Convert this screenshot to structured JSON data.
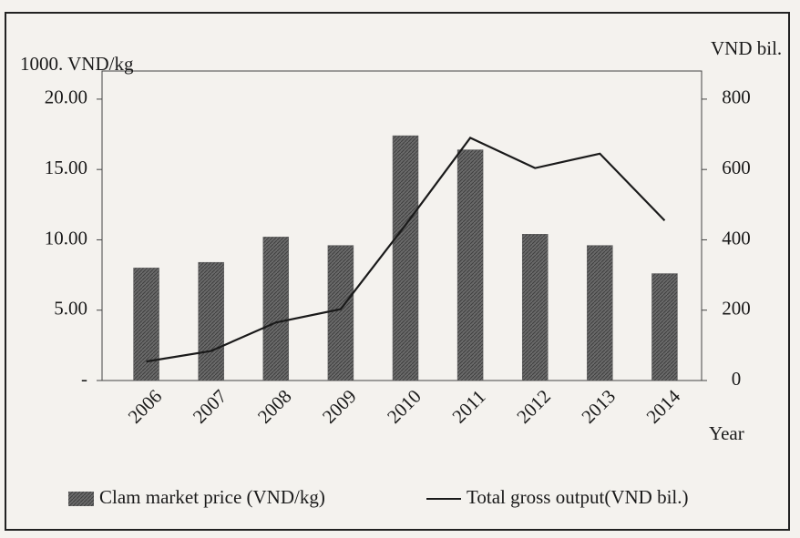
{
  "chart_data": {
    "type": "bar-line",
    "y_label": "1000. VND/kg",
    "y2_label": "VND bil.",
    "x_label": "Year",
    "categories": [
      "2006",
      "2007",
      "2008",
      "2009",
      "2010",
      "2011",
      "2012",
      "2013",
      "2014"
    ],
    "series": [
      {
        "name": "Clam market price (VND/kg)",
        "type": "bar",
        "color": "#5c5c5c",
        "values": [
          8.0,
          8.4,
          10.2,
          9.6,
          17.4,
          16.4,
          10.4,
          9.6,
          7.6
        ]
      },
      {
        "name": "Total gross output(VND bil.)",
        "type": "line",
        "axis": "y2",
        "color": "#1a1a1a",
        "values": [
          54,
          84,
          165,
          203,
          442,
          690,
          604,
          645,
          455
        ]
      }
    ],
    "ylim": [
      0,
      22
    ],
    "yticks": [
      {
        "value": 0,
        "label": "-"
      },
      {
        "value": 5,
        "label": "5.00"
      },
      {
        "value": 10,
        "label": "10.00"
      },
      {
        "value": 15,
        "label": "15.00"
      },
      {
        "value": 20,
        "label": "20.00"
      }
    ],
    "y2lim": [
      0,
      880
    ],
    "y2ticks": [
      0,
      200,
      400,
      600,
      800
    ],
    "legend": "bottom"
  }
}
